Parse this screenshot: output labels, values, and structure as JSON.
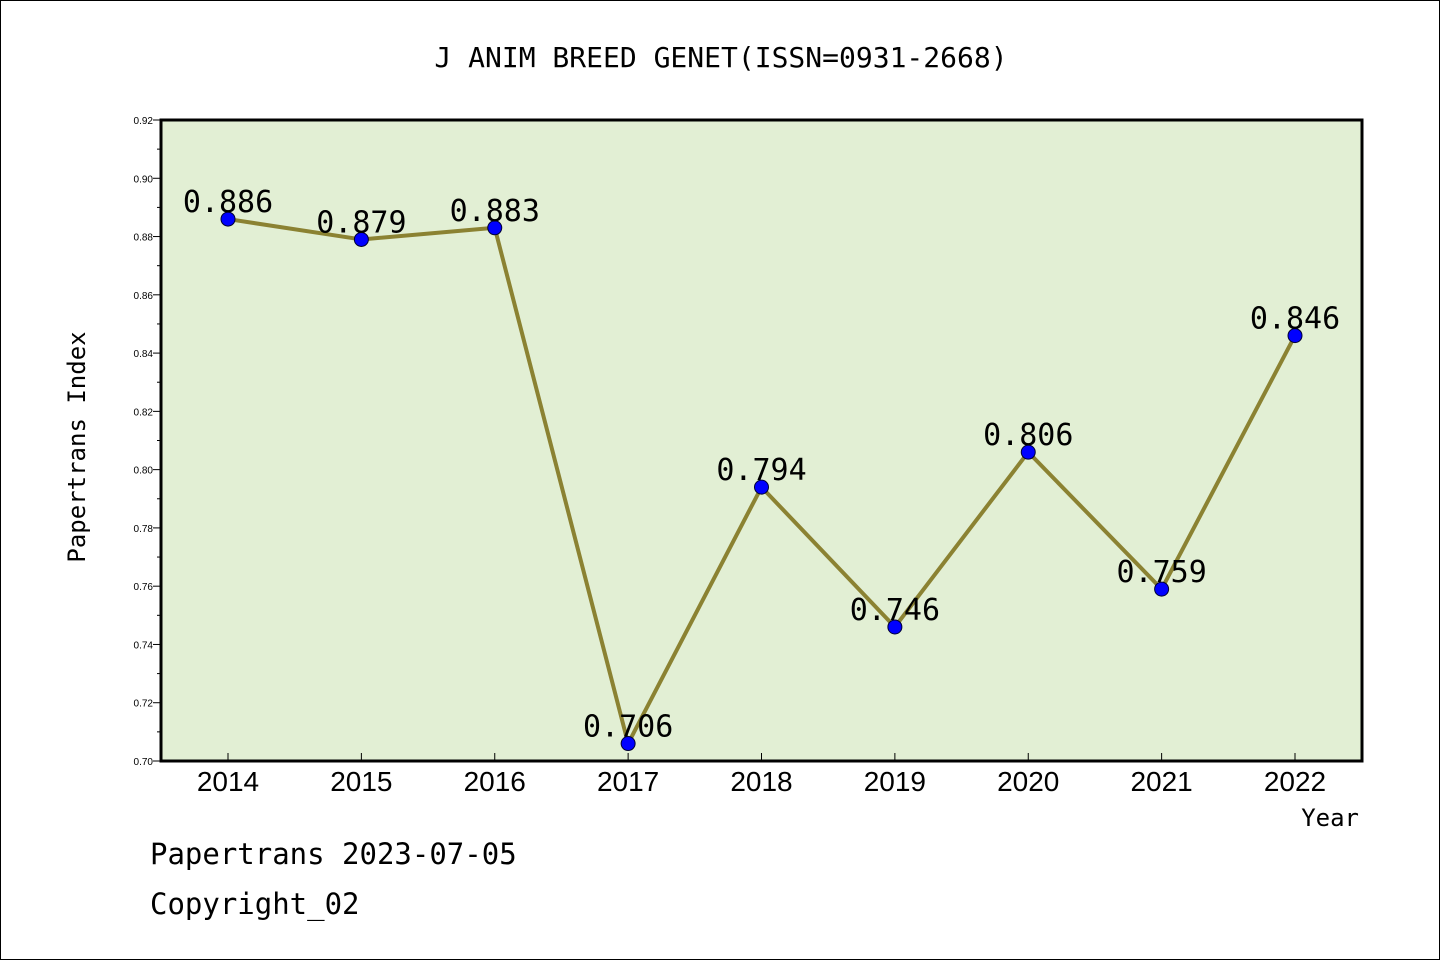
{
  "chart_data": {
    "type": "line",
    "title": "J ANIM BREED GENET(ISSN=0931-2668)",
    "xlabel": "Year",
    "ylabel": "Papertrans Index",
    "categories": [
      "2014",
      "2015",
      "2016",
      "2017",
      "2018",
      "2019",
      "2020",
      "2021",
      "2022"
    ],
    "series": [
      {
        "values": [
          0.886,
          0.879,
          0.883,
          0.706,
          0.794,
          0.746,
          0.806,
          0.759,
          0.846
        ]
      }
    ],
    "data_labels": [
      "0.886",
      "0.879",
      "0.883",
      "0.706",
      "0.794",
      "0.746",
      "0.806",
      "0.759",
      "0.846"
    ],
    "ylim": [
      0.7,
      0.92
    ],
    "yticks": [
      "0.70",
      "0.72",
      "0.74",
      "0.76",
      "0.78",
      "0.80",
      "0.82",
      "0.84",
      "0.86",
      "0.88",
      "0.90",
      "0.92"
    ],
    "grid": false,
    "legend": "none",
    "colors": {
      "plot_background": "#e2efd4",
      "line": "#8b8232",
      "marker": "#0000ff",
      "axes": "#000000"
    }
  },
  "footer": {
    "line1": "Papertrans 2023-07-05",
    "line2": "Copyright_02"
  }
}
